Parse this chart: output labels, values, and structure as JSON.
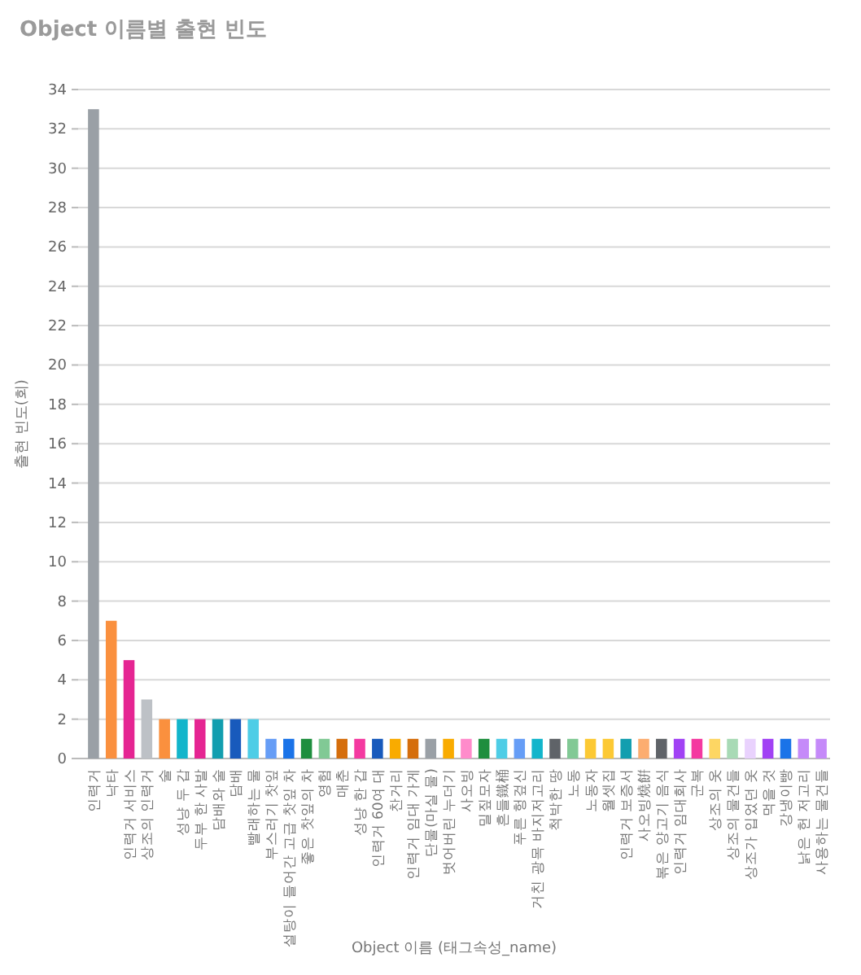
{
  "chart_data": {
    "type": "bar",
    "title": "Object 이름별 출현 빈도",
    "xlabel": "Object 이름 (태그속성_name)",
    "ylabel": "출현 빈도(회)",
    "categories": [
      "인력거",
      "낙타",
      "인력거 서비스",
      "상조의 인력거",
      "술",
      "성냥 두 갑",
      "두부 한 사발",
      "담배와 술",
      "담배",
      "빨래하는 물",
      "부스러기 찻잎",
      "설탕이 들어간 고급 찻잎 차",
      "좋은 찻잎의 차",
      "영험",
      "매춘",
      "성냥 한 갑",
      "인력거 60여 대",
      "찬거리",
      "인력거 임대 가게",
      "단물(마실 물)",
      "벗어버린 누더기",
      "사오빙",
      "밀짚모자",
      "흔들鐵桶",
      "푸른 헝겊신",
      "거친 광목 바지저고리",
      "척박한 땅",
      "노동",
      "노동자",
      "월셋집",
      "인력거 보증서",
      "사오빙燒餠",
      "볶은 양고기 음식",
      "인력거 임대회사",
      "군복",
      "상조의 옷",
      "상조의 물건들",
      "상조가 입었던 옷",
      "먹을 것",
      "강냉이빵",
      "낡은 헌 저고리",
      "사용하는 물건들"
    ],
    "values": [
      33,
      7,
      5,
      3,
      2,
      2,
      2,
      2,
      2,
      2,
      1,
      1,
      1,
      1,
      1,
      1,
      1,
      1,
      1,
      1,
      1,
      1,
      1,
      1,
      1,
      1,
      1,
      1,
      1,
      1,
      1,
      1,
      1,
      1,
      1,
      1,
      1,
      1,
      1,
      1,
      1,
      1
    ],
    "colors": [
      "#9aa0a6",
      "#fa903e",
      "#e52592",
      "#bdc1c6",
      "#fa903e",
      "#12b5cb",
      "#e52592",
      "#129eaf",
      "#185abc",
      "#4ecde6",
      "#669df6",
      "#1a73e8",
      "#1e8e3e",
      "#81c995",
      "#d56e0c",
      "#f439a0",
      "#185abc",
      "#f9ab00",
      "#d56e0c",
      "#9aa0a6",
      "#f9ab00",
      "#ff8bcb",
      "#1e8e3e",
      "#4ecde6",
      "#669df6",
      "#12b5cb",
      "#5f6368",
      "#81c995",
      "#fcc934",
      "#fcc934",
      "#129eaf",
      "#fcad70",
      "#5f6368",
      "#a142f4",
      "#f439a0",
      "#fdd663",
      "#a8dab5",
      "#e9d2fd",
      "#a142f4",
      "#1a73e8",
      "#c58af9",
      "#c58af9"
    ],
    "ylim": [
      0,
      34
    ],
    "yticks": [
      0,
      2,
      4,
      6,
      8,
      10,
      12,
      14,
      16,
      18,
      20,
      22,
      24,
      26,
      28,
      30,
      32,
      34
    ],
    "grid": "y"
  }
}
